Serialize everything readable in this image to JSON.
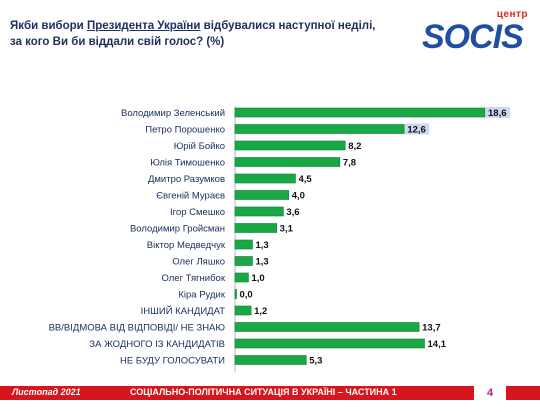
{
  "header": {
    "question_part1": "Якби вибори ",
    "question_underlined": "Президента України",
    "question_part2": " відбувалися наступної неділі, за кого Ви би віддали свій голос? (%)"
  },
  "logo": {
    "center_word": "центр",
    "brand": "SOCIS"
  },
  "colors": {
    "bar_green": "#1aa844",
    "bar_green_dark": "#0f7d30",
    "highlight": "#cfd6f2",
    "footer_red": "#d6151c",
    "text_navy": "#1f2f60"
  },
  "chart_data": {
    "type": "bar",
    "orientation": "horizontal",
    "categories": [
      "Володимир Зеленський",
      "Петро Порошенко",
      "Юрій Бойко",
      "Юлія Тимошенко",
      "Дмитро Разумков",
      "Євгеній Мураєв",
      "Ігор Смешко",
      "Володимир Гройсман",
      "Віктор Медведчук",
      "Олег Ляшко",
      "Олег Тягнибок",
      "Кіра Рудик",
      "ІНШИЙ КАНДИДАТ",
      "ВВ/ВІДМОВА ВІД ВІДПОВІДІ/ НЕ ЗНАЮ",
      "ЗА ЖОДНОГО ІЗ КАНДИДАТІВ",
      "НЕ БУДУ ГОЛОСУВАТИ"
    ],
    "values": [
      18.6,
      12.6,
      8.2,
      7.8,
      4.5,
      4.0,
      3.6,
      3.1,
      1.3,
      1.3,
      1.0,
      0.0,
      1.2,
      13.7,
      14.1,
      5.3
    ],
    "value_labels": [
      "18,6",
      "12,6",
      "8,2",
      "7,8",
      "4,5",
      "4,0",
      "3,6",
      "3,1",
      "1,3",
      "1,3",
      "1,0",
      "0,0",
      "1,2",
      "13,7",
      "14,1",
      "5,3"
    ],
    "highlighted_labels": [
      0,
      1
    ],
    "xlim": [
      0,
      18.6
    ],
    "grid": false,
    "legend": "none"
  },
  "footer": {
    "date": "Листопад 2021",
    "subject": "СОЦІАЛЬНО-ПОЛІТИЧНА СИТУАЦІЯ В УКРАЇНІ – ЧАСТИНА 1",
    "page_number": "4"
  }
}
